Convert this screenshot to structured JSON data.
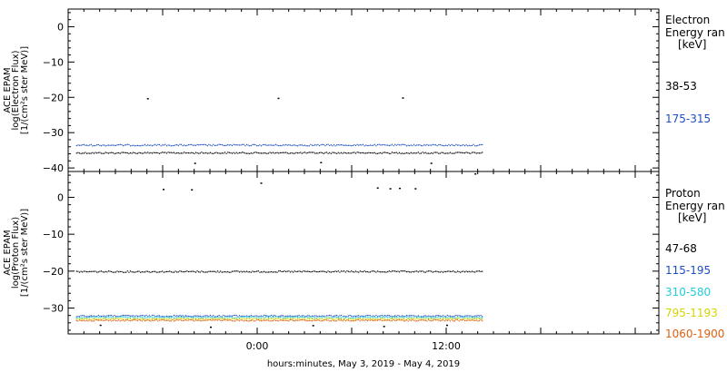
{
  "xlabel": "hours:minutes, May  3, 2019 - May  4, 2019",
  "x_ticks": [
    "0:00",
    "12:00"
  ],
  "chart_data": [
    {
      "type": "scatter",
      "panel": "electron",
      "ylabel": [
        "ACE EPAM",
        "log(Electron Flux)",
        "[1/(cm²s ster MeV)]"
      ],
      "ylim": [
        -41,
        5
      ],
      "y_ticks": [
        0,
        -10,
        -20,
        -30,
        -40
      ],
      "xlim": [
        -12,
        25.5
      ],
      "x_ticks_hours": [
        0,
        12
      ],
      "legend_title": [
        "Electron",
        "Energy ran",
        "[keV]"
      ],
      "series": [
        {
          "name": "38-53",
          "color": "#000000",
          "level": -35.6,
          "x_range": [
            -11.5,
            14.3
          ],
          "outliers": [
            {
              "x": -7.0,
              "y": -20.2
            },
            {
              "x": 1.3,
              "y": -20.1
            },
            {
              "x": 9.2,
              "y": -20.0
            },
            {
              "x": -4.0,
              "y": -38.5
            },
            {
              "x": 4.0,
              "y": -38.3
            },
            {
              "x": 11.0,
              "y": -38.5
            }
          ]
        },
        {
          "name": "175-315",
          "color": "#1f4fbf",
          "level": -33.4,
          "x_range": [
            -11.5,
            14.3
          ],
          "outliers": []
        }
      ]
    },
    {
      "type": "scatter",
      "panel": "proton",
      "ylabel": [
        "ACE EPAM",
        "log(Proton Flux)",
        "[1/(cm²s ster MeV)]"
      ],
      "ylim": [
        -37,
        7
      ],
      "y_ticks": [
        0,
        -10,
        -20,
        -30
      ],
      "xlim": [
        -12,
        25.5
      ],
      "x_ticks_hours": [
        0,
        12
      ],
      "legend_title": [
        "Proton",
        "Energy ran",
        "[keV]"
      ],
      "series": [
        {
          "name": "47-68",
          "color": "#000000",
          "level": -20.0,
          "x_range": [
            -11.5,
            14.3
          ],
          "outliers": [
            {
              "x": -6.0,
              "y": 2.3
            },
            {
              "x": -4.2,
              "y": 2.2
            },
            {
              "x": 0.2,
              "y": 4.0
            },
            {
              "x": 7.6,
              "y": 2.7
            },
            {
              "x": 8.4,
              "y": 2.5
            },
            {
              "x": 9.0,
              "y": 2.6
            },
            {
              "x": 10.0,
              "y": 2.5
            },
            {
              "x": 13.8,
              "y": 6.5
            },
            {
              "x": -10.0,
              "y": -34.5
            },
            {
              "x": -3.0,
              "y": -35.0
            },
            {
              "x": 3.5,
              "y": -34.6
            },
            {
              "x": 8.0,
              "y": -34.8
            },
            {
              "x": 12.0,
              "y": -34.5
            }
          ]
        },
        {
          "name": "115-195",
          "color": "#1f4fbf",
          "level": -32.0,
          "x_range": [
            -11.5,
            14.3
          ],
          "outliers": []
        },
        {
          "name": "310-580",
          "color": "#22ccdd",
          "level": -32.4,
          "x_range": [
            -11.5,
            14.3
          ],
          "outliers": []
        },
        {
          "name": "795-1193",
          "color": "#d4d400",
          "level": -32.8,
          "x_range": [
            -11.5,
            14.3
          ],
          "outliers": []
        },
        {
          "name": "1060-1900",
          "color": "#e06010",
          "level": -33.2,
          "x_range": [
            -11.5,
            14.3
          ],
          "outliers": []
        }
      ]
    }
  ]
}
